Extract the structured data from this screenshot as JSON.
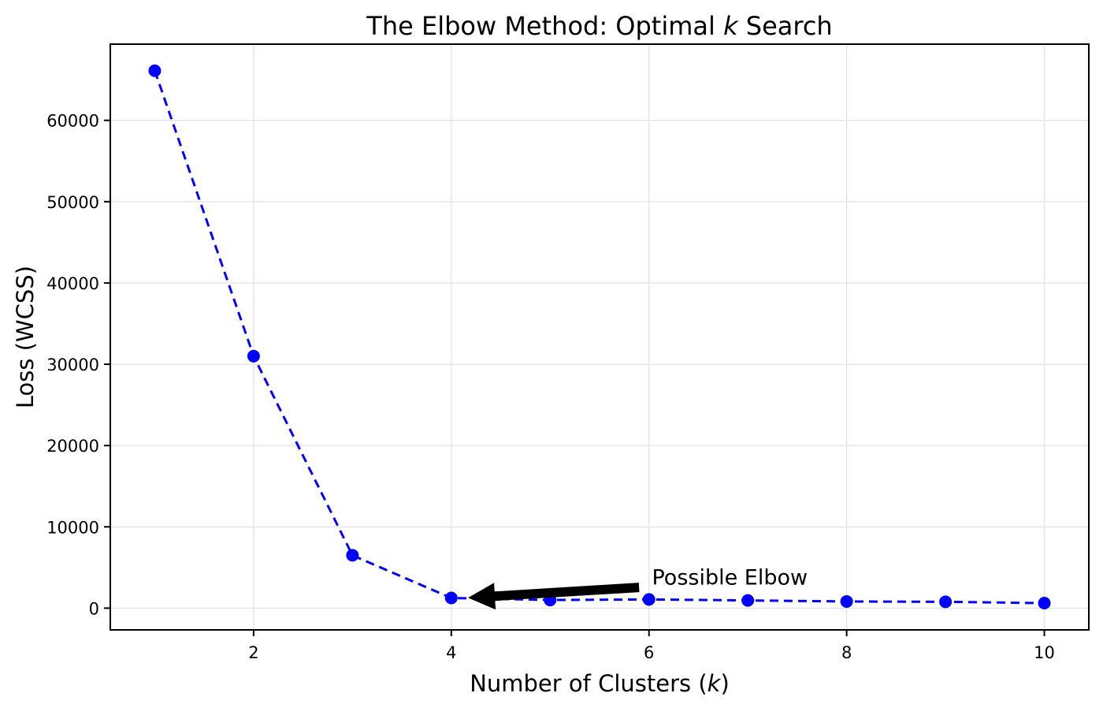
{
  "chart_data": {
    "type": "line",
    "title": "The Elbow Method: Optimal k Search",
    "title_parts": [
      {
        "text": "The Elbow Method: Optimal ",
        "italic": false
      },
      {
        "text": "k",
        "italic": true
      },
      {
        "text": " Search",
        "italic": false
      }
    ],
    "xlabel": "Number of Clusters (k)",
    "xlabel_parts": [
      {
        "text": "Number of Clusters (",
        "italic": false
      },
      {
        "text": "k",
        "italic": true
      },
      {
        "text": ")",
        "italic": false
      }
    ],
    "ylabel": "Loss (WCSS)",
    "x": [
      1,
      2,
      3,
      4,
      5,
      6,
      7,
      8,
      9,
      10
    ],
    "y": [
      66100,
      31000,
      6500,
      1250,
      1000,
      1070,
      950,
      820,
      780,
      620
    ],
    "xlim": [
      0.55,
      10.45
    ],
    "ylim": [
      -2675,
      69375
    ],
    "xticks": [
      2,
      4,
      6,
      8,
      10
    ],
    "xtick_labels": [
      "2",
      "4",
      "6",
      "8",
      "10"
    ],
    "yticks": [
      0,
      10000,
      20000,
      30000,
      40000,
      50000,
      60000
    ],
    "ytick_labels": [
      "0",
      "10000",
      "20000",
      "30000",
      "40000",
      "50000",
      "60000"
    ],
    "grid": true,
    "legend": null,
    "line_color": "#0000FF",
    "line_style": "dashed",
    "marker": "circle",
    "marker_color": "#0000FF",
    "grid_color": "#E4E4E4",
    "spine_color": "#000000",
    "annotation": {
      "text": "Possible Elbow",
      "color": "#000000",
      "text_x": 6.03,
      "text_y": 2900,
      "arrow_tail_x": 5.9,
      "arrow_tail_y": 2550,
      "arrow_tip_x": 4.17,
      "arrow_tip_y": 1270
    }
  }
}
